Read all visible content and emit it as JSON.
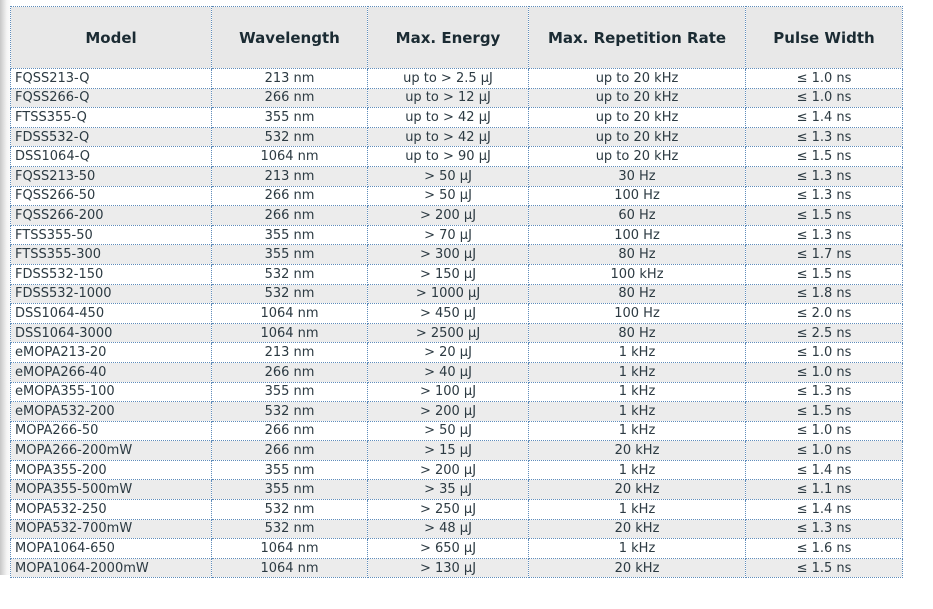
{
  "table": {
    "columns": [
      "Model",
      "Wavelength",
      "Max. Energy",
      "Max. Repetition Rate",
      "Pulse Width"
    ],
    "rows": [
      [
        "FQSS213-Q",
        "213 nm",
        "up to > 2.5 µJ",
        "up to 20 kHz",
        "≤ 1.0 ns"
      ],
      [
        "FQSS266-Q",
        "266 nm",
        "up to > 12 µJ",
        "up to 20 kHz",
        "≤ 1.0 ns"
      ],
      [
        "FTSS355-Q",
        "355 nm",
        "up to > 42 µJ",
        "up to 20 kHz",
        "≤ 1.4 ns"
      ],
      [
        "FDSS532-Q",
        "532 nm",
        "up to > 42 µJ",
        "up to 20 kHz",
        "≤ 1.3 ns"
      ],
      [
        "DSS1064-Q",
        "1064 nm",
        "up to > 90 µJ",
        "up to 20 kHz",
        "≤ 1.5 ns"
      ],
      [
        "FQSS213-50",
        "213 nm",
        "> 50 µJ",
        "30 Hz",
        "≤ 1.3 ns"
      ],
      [
        "FQSS266-50",
        "266 nm",
        "> 50 µJ",
        "100 Hz",
        "≤ 1.3 ns"
      ],
      [
        "FQSS266-200",
        "266 nm",
        "> 200 µJ",
        "60 Hz",
        "≤ 1.5 ns"
      ],
      [
        "FTSS355-50",
        "355 nm",
        "> 70 µJ",
        "100 Hz",
        "≤ 1.3 ns"
      ],
      [
        "FTSS355-300",
        "355 nm",
        "> 300 µJ",
        "80 Hz",
        "≤ 1.7 ns"
      ],
      [
        "FDSS532-150",
        "532 nm",
        "> 150 µJ",
        "100 kHz",
        "≤ 1.5 ns"
      ],
      [
        "FDSS532-1000",
        "532 nm",
        "> 1000 µJ",
        "80 Hz",
        "≤ 1.8 ns"
      ],
      [
        "DSS1064-450",
        "1064 nm",
        "> 450 µJ",
        "100 Hz",
        "≤ 2.0 ns"
      ],
      [
        "DSS1064-3000",
        "1064 nm",
        "> 2500 µJ",
        "80 Hz",
        "≤ 2.5 ns"
      ],
      [
        "eMOPA213-20",
        "213 nm",
        "> 20 µJ",
        "1 kHz",
        "≤ 1.0 ns"
      ],
      [
        "eMOPA266-40",
        "266 nm",
        "> 40 µJ",
        "1 kHz",
        "≤ 1.0 ns"
      ],
      [
        "eMOPA355-100",
        "355 nm",
        "> 100 µJ",
        "1 kHz",
        "≤ 1.3 ns"
      ],
      [
        "eMOPA532-200",
        "532 nm",
        "> 200 µJ",
        "1 kHz",
        "≤ 1.5 ns"
      ],
      [
        "MOPA266-50",
        "266 nm",
        "> 50 µJ",
        "1 kHz",
        "≤ 1.0 ns"
      ],
      [
        "MOPA266-200mW",
        "266 nm",
        "> 15 µJ",
        "20 kHz",
        "≤ 1.0 ns"
      ],
      [
        "MOPA355-200",
        "355 nm",
        "> 200 µJ",
        "1 kHz",
        "≤ 1.4 ns"
      ],
      [
        "MOPA355-500mW",
        "355 nm",
        "> 35 µJ",
        "20 kHz",
        "≤ 1.1 ns"
      ],
      [
        "MOPA532-250",
        "532 nm",
        "> 250 µJ",
        "1 kHz",
        "≤ 1.4 ns"
      ],
      [
        "MOPA532-700mW",
        "532 nm",
        "> 48 µJ",
        "20 kHz",
        "≤ 1.3 ns"
      ],
      [
        "MOPA1064-650",
        "1064 nm",
        "> 650 µJ",
        "1 kHz",
        "≤ 1.6 ns"
      ],
      [
        "MOPA1064-2000mW",
        "1064 nm",
        "> 130 µJ",
        "20 kHz",
        "≤ 1.5 ns"
      ]
    ]
  },
  "colors": {
    "border_blue": "#5f8cba",
    "header_bg": "#e8e8e8",
    "stripe_bg": "#ececec",
    "header_text": "#1b2b33",
    "body_text": "#2c3a42"
  }
}
